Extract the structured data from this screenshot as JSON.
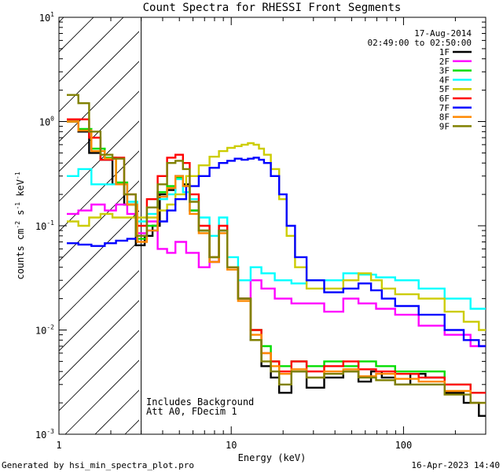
{
  "footer": {
    "generated_by": "Generated by hsi_min_spectra_plot.pro",
    "timestamp": "16-Apr-2023 14:40"
  },
  "chart_data": {
    "type": "line",
    "title": "Count Spectra for RHESSI Front Segments",
    "xlabel": "Energy (keV)",
    "ylabel_main": "counts cm",
    "ylabel_parts": [
      "counts cm",
      "-2",
      " s",
      "-1",
      " keV",
      "-1"
    ],
    "xscale": "log",
    "yscale": "log",
    "xlim": [
      1,
      300
    ],
    "ylim": [
      0.001,
      10
    ],
    "x_ticks": [
      {
        "value": 1,
        "label": "1"
      },
      {
        "value": 10,
        "label": "10"
      },
      {
        "value": 100,
        "label": "100"
      }
    ],
    "y_ticks": [
      {
        "value": 0.001,
        "base": "10",
        "exp": "-3"
      },
      {
        "value": 0.01,
        "base": "10",
        "exp": "-2"
      },
      {
        "value": 0.1,
        "base": "10",
        "exp": "-1"
      },
      {
        "value": 1,
        "base": "10",
        "exp": "0"
      },
      {
        "value": 10,
        "base": "10",
        "exp": "1"
      }
    ],
    "date": "17-Aug-2014",
    "time_range": "02:49:00 to 02:50:00",
    "hatched_region_keV": [
      1,
      3
    ],
    "annotations": [
      "Includes Background",
      "Att A0, FDecim 1"
    ],
    "legend_position": "top-right",
    "series": [
      {
        "name": "1F",
        "color": "#000000",
        "points": [
          [
            1.2,
            1.0
          ],
          [
            1.4,
            0.8
          ],
          [
            1.6,
            0.5
          ],
          [
            1.9,
            0.43
          ],
          [
            2.2,
            0.25
          ],
          [
            2.6,
            0.16
          ],
          [
            3.0,
            0.065
          ],
          [
            3.3,
            0.08
          ],
          [
            3.7,
            0.1
          ],
          [
            4.0,
            0.2
          ],
          [
            4.5,
            0.22
          ],
          [
            5.0,
            0.3
          ],
          [
            5.5,
            0.25
          ],
          [
            6.0,
            0.14
          ],
          [
            7.0,
            0.09
          ],
          [
            8.0,
            0.045
          ],
          [
            9.0,
            0.09
          ],
          [
            10,
            0.04
          ],
          [
            12,
            0.02
          ],
          [
            14,
            0.008
          ],
          [
            16,
            0.0045
          ],
          [
            18,
            0.0035
          ],
          [
            20,
            0.0025
          ],
          [
            25,
            0.004
          ],
          [
            30,
            0.0028
          ],
          [
            40,
            0.0035
          ],
          [
            50,
            0.004
          ],
          [
            60,
            0.0032
          ],
          [
            70,
            0.004
          ],
          [
            80,
            0.0035
          ],
          [
            100,
            0.003
          ],
          [
            120,
            0.0038
          ],
          [
            150,
            0.0035
          ],
          [
            200,
            0.0025
          ],
          [
            250,
            0.002
          ],
          [
            300,
            0.0015
          ]
        ]
      },
      {
        "name": "2F",
        "color": "#ff00ff",
        "points": [
          [
            1.2,
            0.13
          ],
          [
            1.4,
            0.14
          ],
          [
            1.7,
            0.16
          ],
          [
            2.0,
            0.14
          ],
          [
            2.3,
            0.16
          ],
          [
            2.7,
            0.13
          ],
          [
            3.0,
            0.085
          ],
          [
            3.5,
            0.11
          ],
          [
            4.0,
            0.06
          ],
          [
            4.5,
            0.055
          ],
          [
            5.0,
            0.07
          ],
          [
            6.0,
            0.055
          ],
          [
            7.0,
            0.04
          ],
          [
            8.0,
            0.045
          ],
          [
            9.0,
            0.09
          ],
          [
            10,
            0.04
          ],
          [
            12,
            0.02
          ],
          [
            14,
            0.03
          ],
          [
            16,
            0.025
          ],
          [
            20,
            0.02
          ],
          [
            25,
            0.018
          ],
          [
            30,
            0.018
          ],
          [
            40,
            0.015
          ],
          [
            50,
            0.02
          ],
          [
            60,
            0.018
          ],
          [
            80,
            0.016
          ],
          [
            100,
            0.014
          ],
          [
            150,
            0.011
          ],
          [
            200,
            0.009
          ],
          [
            300,
            0.007
          ]
        ]
      },
      {
        "name": "3F",
        "color": "#00dd00",
        "points": [
          [
            1.2,
            1.0
          ],
          [
            1.4,
            0.85
          ],
          [
            1.7,
            0.55
          ],
          [
            2.0,
            0.45
          ],
          [
            2.3,
            0.26
          ],
          [
            2.7,
            0.16
          ],
          [
            3.0,
            0.075
          ],
          [
            3.5,
            0.1
          ],
          [
            4.0,
            0.21
          ],
          [
            4.5,
            0.24
          ],
          [
            5.0,
            0.29
          ],
          [
            5.5,
            0.24
          ],
          [
            6.0,
            0.14
          ],
          [
            7.0,
            0.09
          ],
          [
            8.0,
            0.05
          ],
          [
            9.0,
            0.09
          ],
          [
            10,
            0.04
          ],
          [
            12,
            0.02
          ],
          [
            14,
            0.01
          ],
          [
            16,
            0.007
          ],
          [
            18,
            0.005
          ],
          [
            20,
            0.0045
          ],
          [
            25,
            0.005
          ],
          [
            30,
            0.0045
          ],
          [
            40,
            0.005
          ],
          [
            50,
            0.0045
          ],
          [
            60,
            0.005
          ],
          [
            80,
            0.0045
          ],
          [
            100,
            0.004
          ],
          [
            150,
            0.004
          ],
          [
            200,
            0.003
          ],
          [
            300,
            0.0025
          ]
        ]
      },
      {
        "name": "4F",
        "color": "#00ffff",
        "points": [
          [
            1.2,
            0.3
          ],
          [
            1.4,
            0.35
          ],
          [
            1.7,
            0.25
          ],
          [
            2.0,
            0.25
          ],
          [
            2.3,
            0.25
          ],
          [
            2.7,
            0.17
          ],
          [
            3.0,
            0.11
          ],
          [
            3.5,
            0.13
          ],
          [
            4.0,
            0.18
          ],
          [
            4.5,
            0.2
          ],
          [
            5.0,
            0.28
          ],
          [
            5.5,
            0.21
          ],
          [
            6.0,
            0.18
          ],
          [
            7.0,
            0.12
          ],
          [
            8.0,
            0.08
          ],
          [
            9.0,
            0.12
          ],
          [
            10,
            0.05
          ],
          [
            12,
            0.03
          ],
          [
            14,
            0.04
          ],
          [
            16,
            0.035
          ],
          [
            20,
            0.03
          ],
          [
            25,
            0.028
          ],
          [
            30,
            0.03
          ],
          [
            40,
            0.03
          ],
          [
            50,
            0.035
          ],
          [
            60,
            0.034
          ],
          [
            80,
            0.032
          ],
          [
            100,
            0.03
          ],
          [
            150,
            0.025
          ],
          [
            200,
            0.02
          ],
          [
            300,
            0.016
          ]
        ]
      },
      {
        "name": "5F",
        "color": "#cccc00",
        "points": [
          [
            1.2,
            0.11
          ],
          [
            1.4,
            0.1
          ],
          [
            1.6,
            0.12
          ],
          [
            1.9,
            0.13
          ],
          [
            2.2,
            0.12
          ],
          [
            2.6,
            0.12
          ],
          [
            3.0,
            0.12
          ],
          [
            3.5,
            0.12
          ],
          [
            4.0,
            0.14
          ],
          [
            4.5,
            0.16
          ],
          [
            5.0,
            0.2
          ],
          [
            6.0,
            0.3
          ],
          [
            7.0,
            0.38
          ],
          [
            8.0,
            0.46
          ],
          [
            9.0,
            0.52
          ],
          [
            10,
            0.56
          ],
          [
            11,
            0.58
          ],
          [
            12,
            0.6
          ],
          [
            13,
            0.62
          ],
          [
            14,
            0.6
          ],
          [
            15,
            0.55
          ],
          [
            16,
            0.48
          ],
          [
            18,
            0.35
          ],
          [
            20,
            0.18
          ],
          [
            22,
            0.08
          ],
          [
            25,
            0.04
          ],
          [
            30,
            0.025
          ],
          [
            40,
            0.025
          ],
          [
            50,
            0.03
          ],
          [
            60,
            0.035
          ],
          [
            70,
            0.03
          ],
          [
            80,
            0.025
          ],
          [
            100,
            0.022
          ],
          [
            150,
            0.02
          ],
          [
            200,
            0.015
          ],
          [
            250,
            0.012
          ],
          [
            300,
            0.01
          ]
        ]
      },
      {
        "name": "6F",
        "color": "#ff0000",
        "points": [
          [
            1.2,
            1.05
          ],
          [
            1.4,
            1.05
          ],
          [
            1.6,
            0.7
          ],
          [
            1.9,
            0.43
          ],
          [
            2.2,
            0.45
          ],
          [
            2.6,
            0.2
          ],
          [
            3.0,
            0.1
          ],
          [
            3.5,
            0.18
          ],
          [
            4.0,
            0.3
          ],
          [
            4.5,
            0.45
          ],
          [
            5.0,
            0.48
          ],
          [
            5.5,
            0.4
          ],
          [
            6.0,
            0.2
          ],
          [
            7.0,
            0.1
          ],
          [
            8.0,
            0.05
          ],
          [
            9.0,
            0.1
          ],
          [
            10,
            0.04
          ],
          [
            12,
            0.02
          ],
          [
            14,
            0.01
          ],
          [
            16,
            0.006
          ],
          [
            18,
            0.005
          ],
          [
            20,
            0.004
          ],
          [
            25,
            0.005
          ],
          [
            30,
            0.004
          ],
          [
            40,
            0.0045
          ],
          [
            50,
            0.005
          ],
          [
            60,
            0.0042
          ],
          [
            80,
            0.004
          ],
          [
            100,
            0.0038
          ],
          [
            150,
            0.0035
          ],
          [
            200,
            0.003
          ],
          [
            300,
            0.0025
          ]
        ]
      },
      {
        "name": "7F",
        "color": "#0000ff",
        "points": [
          [
            1.2,
            0.068
          ],
          [
            1.4,
            0.066
          ],
          [
            1.7,
            0.064
          ],
          [
            2.0,
            0.068
          ],
          [
            2.3,
            0.072
          ],
          [
            2.7,
            0.075
          ],
          [
            3.0,
            0.08
          ],
          [
            3.5,
            0.09
          ],
          [
            4.0,
            0.11
          ],
          [
            4.5,
            0.14
          ],
          [
            5.0,
            0.18
          ],
          [
            6.0,
            0.24
          ],
          [
            7.0,
            0.3
          ],
          [
            8.0,
            0.36
          ],
          [
            9.0,
            0.4
          ],
          [
            10,
            0.42
          ],
          [
            11,
            0.44
          ],
          [
            12,
            0.43
          ],
          [
            13,
            0.44
          ],
          [
            14,
            0.45
          ],
          [
            15,
            0.43
          ],
          [
            16,
            0.4
          ],
          [
            18,
            0.3
          ],
          [
            20,
            0.2
          ],
          [
            22,
            0.1
          ],
          [
            25,
            0.05
          ],
          [
            30,
            0.03
          ],
          [
            40,
            0.023
          ],
          [
            50,
            0.025
          ],
          [
            60,
            0.028
          ],
          [
            70,
            0.024
          ],
          [
            80,
            0.02
          ],
          [
            100,
            0.017
          ],
          [
            150,
            0.014
          ],
          [
            200,
            0.01
          ],
          [
            250,
            0.008
          ],
          [
            300,
            0.007
          ]
        ]
      },
      {
        "name": "8F",
        "color": "#ff8800",
        "points": [
          [
            1.2,
            1.0
          ],
          [
            1.4,
            0.82
          ],
          [
            1.7,
            0.52
          ],
          [
            2.0,
            0.44
          ],
          [
            2.3,
            0.25
          ],
          [
            2.7,
            0.16
          ],
          [
            3.0,
            0.07
          ],
          [
            3.5,
            0.09
          ],
          [
            4.0,
            0.19
          ],
          [
            4.5,
            0.23
          ],
          [
            5.0,
            0.3
          ],
          [
            5.5,
            0.24
          ],
          [
            6.0,
            0.13
          ],
          [
            7.0,
            0.085
          ],
          [
            8.0,
            0.045
          ],
          [
            9.0,
            0.085
          ],
          [
            10,
            0.038
          ],
          [
            12,
            0.019
          ],
          [
            14,
            0.009
          ],
          [
            16,
            0.006
          ],
          [
            18,
            0.0045
          ],
          [
            20,
            0.0038
          ],
          [
            25,
            0.0042
          ],
          [
            30,
            0.0035
          ],
          [
            40,
            0.004
          ],
          [
            50,
            0.0042
          ],
          [
            60,
            0.0036
          ],
          [
            80,
            0.0038
          ],
          [
            100,
            0.0034
          ],
          [
            150,
            0.0032
          ],
          [
            200,
            0.0026
          ],
          [
            300,
            0.002
          ]
        ]
      },
      {
        "name": "9F",
        "color": "#808000",
        "points": [
          [
            1.2,
            1.8
          ],
          [
            1.4,
            1.5
          ],
          [
            1.6,
            0.8
          ],
          [
            1.9,
            0.48
          ],
          [
            2.2,
            0.44
          ],
          [
            2.6,
            0.2
          ],
          [
            3.0,
            0.08
          ],
          [
            3.5,
            0.15
          ],
          [
            4.0,
            0.25
          ],
          [
            4.5,
            0.4
          ],
          [
            5.0,
            0.42
          ],
          [
            5.5,
            0.35
          ],
          [
            6.0,
            0.17
          ],
          [
            7.0,
            0.09
          ],
          [
            8.0,
            0.05
          ],
          [
            9.0,
            0.09
          ],
          [
            10,
            0.04
          ],
          [
            12,
            0.02
          ],
          [
            14,
            0.008
          ],
          [
            16,
            0.005
          ],
          [
            18,
            0.004
          ],
          [
            20,
            0.003
          ],
          [
            25,
            0.004
          ],
          [
            30,
            0.0035
          ],
          [
            40,
            0.0038
          ],
          [
            50,
            0.004
          ],
          [
            60,
            0.0035
          ],
          [
            80,
            0.0033
          ],
          [
            100,
            0.003
          ],
          [
            150,
            0.003
          ],
          [
            200,
            0.0024
          ],
          [
            300,
            0.002
          ]
        ]
      }
    ]
  }
}
